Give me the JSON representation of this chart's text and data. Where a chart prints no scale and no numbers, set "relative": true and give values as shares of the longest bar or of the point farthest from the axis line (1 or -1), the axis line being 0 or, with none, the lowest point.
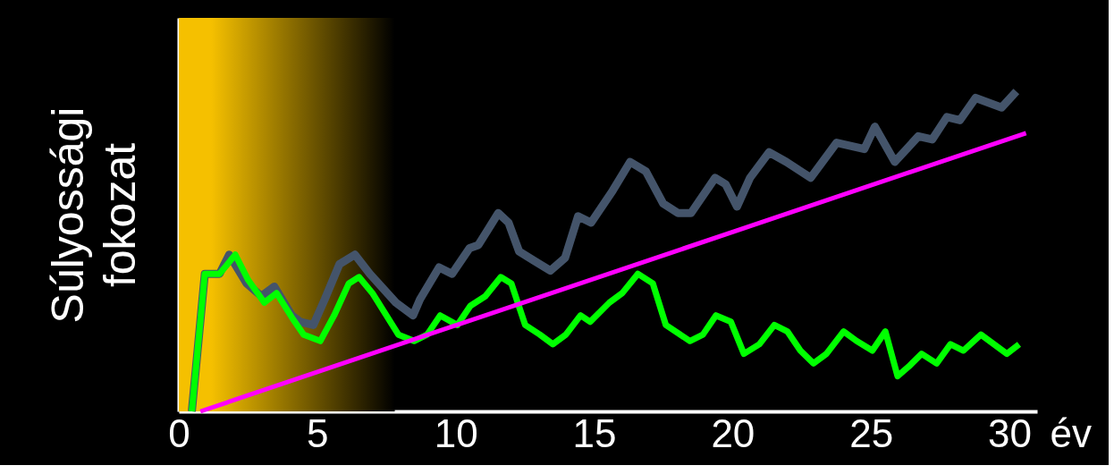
{
  "chart_data": {
    "type": "line",
    "relative": true,
    "ylabel": "Súlyossági fokozat",
    "xlabel": "év",
    "xlim": [
      0,
      31
    ],
    "xticks": [
      0,
      5,
      10,
      15,
      20,
      25,
      30
    ],
    "grid": false,
    "marker": "none",
    "line_style": "solid",
    "bands": [
      {
        "axis": "x",
        "from": 0,
        "to": 7.8,
        "color": "#f5c000"
      }
    ],
    "series": [
      {
        "color": "#44546a",
        "x": [
          0.47,
          0.94,
          1.47,
          1.82,
          2.45,
          2.98,
          3.45,
          4.08,
          4.39,
          4.86,
          5.27,
          5.8,
          6.36,
          6.9,
          7.84,
          8.46,
          8.71,
          9.4,
          9.87,
          10.5,
          10.82,
          11.54,
          11.91,
          12.29,
          12.85,
          13.42,
          13.95,
          14.42,
          14.89,
          15.67,
          16.3,
          16.87,
          17.49,
          18.03,
          18.5,
          19.37,
          19.75,
          20.16,
          20.63,
          21.32,
          21.94,
          22.82,
          23.76,
          24.76,
          25.14,
          25.86,
          26.71,
          27.21,
          27.74,
          28.21,
          28.78,
          29.72,
          30.25
        ],
        "values": [
          0,
          0.43,
          0.43,
          0.49,
          0.4,
          0.36,
          0.39,
          0.3,
          0.28,
          0.27,
          0.35,
          0.46,
          0.49,
          0.43,
          0.34,
          0.3,
          0.35,
          0.45,
          0.43,
          0.51,
          0.52,
          0.62,
          0.59,
          0.5,
          0.47,
          0.44,
          0.48,
          0.61,
          0.59,
          0.69,
          0.78,
          0.75,
          0.65,
          0.62,
          0.62,
          0.73,
          0.71,
          0.64,
          0.73,
          0.81,
          0.78,
          0.73,
          0.84,
          0.82,
          0.89,
          0.78,
          0.86,
          0.85,
          0.92,
          0.91,
          0.98,
          0.95,
          1.0
        ]
      },
      {
        "color": "#00ff00",
        "x": [
          0.47,
          0.94,
          1.47,
          2.04,
          2.51,
          3.09,
          3.53,
          4.11,
          4.51,
          5.11,
          5.61,
          6.14,
          6.51,
          6.99,
          7.93,
          8.5,
          8.97,
          9.44,
          10.06,
          10.53,
          11.07,
          11.63,
          12.01,
          12.51,
          13.04,
          13.51,
          13.98,
          14.51,
          14.86,
          15.55,
          16.02,
          16.58,
          17.12,
          17.59,
          18.46,
          18.93,
          19.4,
          19.94,
          20.41,
          20.97,
          21.51,
          21.98,
          22.45,
          22.92,
          23.39,
          24.01,
          24.48,
          25.05,
          25.52,
          25.96,
          26.36,
          26.83,
          27.37,
          27.87,
          28.34,
          28.97,
          29.44,
          29.91,
          30.35
        ],
        "values": [
          0,
          0.43,
          0.43,
          0.49,
          0.41,
          0.34,
          0.37,
          0.29,
          0.24,
          0.22,
          0.3,
          0.4,
          0.42,
          0.37,
          0.24,
          0.22,
          0.24,
          0.3,
          0.27,
          0.33,
          0.36,
          0.42,
          0.4,
          0.27,
          0.24,
          0.21,
          0.24,
          0.3,
          0.28,
          0.34,
          0.37,
          0.43,
          0.4,
          0.27,
          0.22,
          0.24,
          0.3,
          0.28,
          0.18,
          0.21,
          0.27,
          0.25,
          0.19,
          0.15,
          0.18,
          0.25,
          0.22,
          0.19,
          0.25,
          0.11,
          0.14,
          0.18,
          0.15,
          0.21,
          0.19,
          0.24,
          0.21,
          0.18,
          0.21
        ]
      },
      {
        "color": "#ff00ff",
        "x": [
          0.78,
          30.6
        ],
        "values": [
          0,
          0.87
        ]
      }
    ]
  }
}
